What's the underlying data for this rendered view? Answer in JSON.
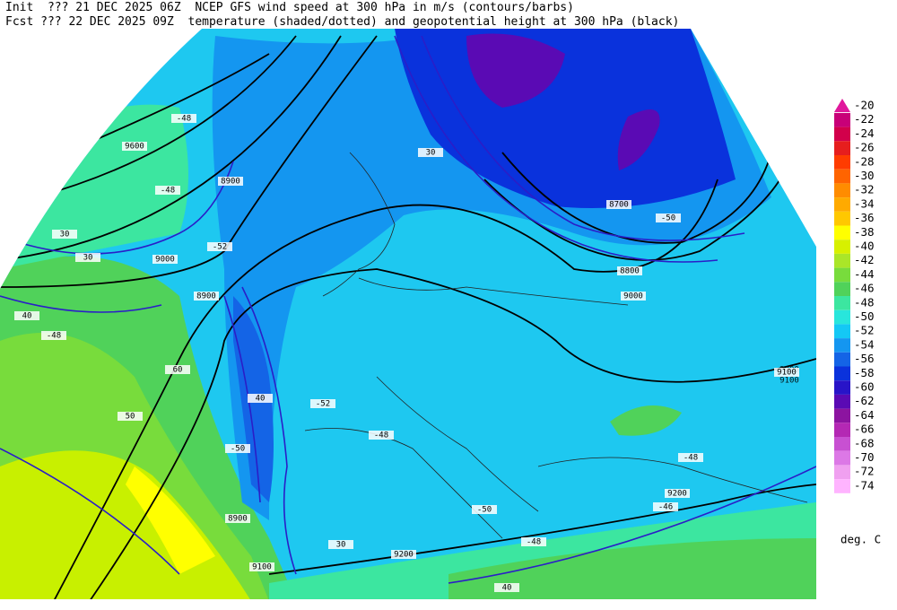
{
  "header": {
    "line1": "Init  ??? 21 DEC 2025 06Z  NCEP GFS wind speed at 300 hPa in m/s (contours/barbs)",
    "line2": "Fcst ??? 22 DEC 2025 09Z  temperature (shaded/dotted) and geopotential height at 300 hPa (black)"
  },
  "colorbar": {
    "unit": "deg. C",
    "levels": [
      {
        "value": -20,
        "color": "#e0189c"
      },
      {
        "value": -22,
        "color": "#c80078"
      },
      {
        "value": -24,
        "color": "#d2004b"
      },
      {
        "value": -26,
        "color": "#e61e1e"
      },
      {
        "value": -28,
        "color": "#ff3c00"
      },
      {
        "value": -30,
        "color": "#ff6400"
      },
      {
        "value": -32,
        "color": "#ff8c00"
      },
      {
        "value": -34,
        "color": "#ffaa00"
      },
      {
        "value": -36,
        "color": "#ffc800"
      },
      {
        "value": -38,
        "color": "#ffff00"
      },
      {
        "value": -40,
        "color": "#d7f000"
      },
      {
        "value": -42,
        "color": "#aae628"
      },
      {
        "value": -44,
        "color": "#78dc3c"
      },
      {
        "value": -46,
        "color": "#50d25a"
      },
      {
        "value": -48,
        "color": "#3ce6a0"
      },
      {
        "value": -50,
        "color": "#28e6dc"
      },
      {
        "value": -52,
        "color": "#14c8f5"
      },
      {
        "value": -54,
        "color": "#1496f0"
      },
      {
        "value": -56,
        "color": "#1464e6"
      },
      {
        "value": -58,
        "color": "#0a32dc"
      },
      {
        "value": -60,
        "color": "#2814c8"
      },
      {
        "value": -62,
        "color": "#5a0ab4"
      },
      {
        "value": -64,
        "color": "#8c14a0"
      },
      {
        "value": -66,
        "color": "#b428b4"
      },
      {
        "value": -68,
        "color": "#c850d2"
      },
      {
        "value": -70,
        "color": "#dc78e6"
      },
      {
        "value": -72,
        "color": "#f0a0f0"
      },
      {
        "value": -74,
        "color": "#ffb4ff"
      }
    ]
  },
  "map_labels": [
    "9600",
    "8900",
    "9000",
    "8900",
    "9100",
    "9000",
    "8700",
    "8800",
    "9000",
    "9100",
    "8900",
    "9100",
    "9200",
    "9200",
    "30",
    "30",
    "40",
    "30",
    "40",
    "50",
    "60",
    "40",
    "30",
    "-48",
    "-48",
    "-52",
    "-50",
    "-52",
    "-50",
    "-48",
    "-48",
    "-50",
    "-48",
    "-46",
    "-48"
  ]
}
